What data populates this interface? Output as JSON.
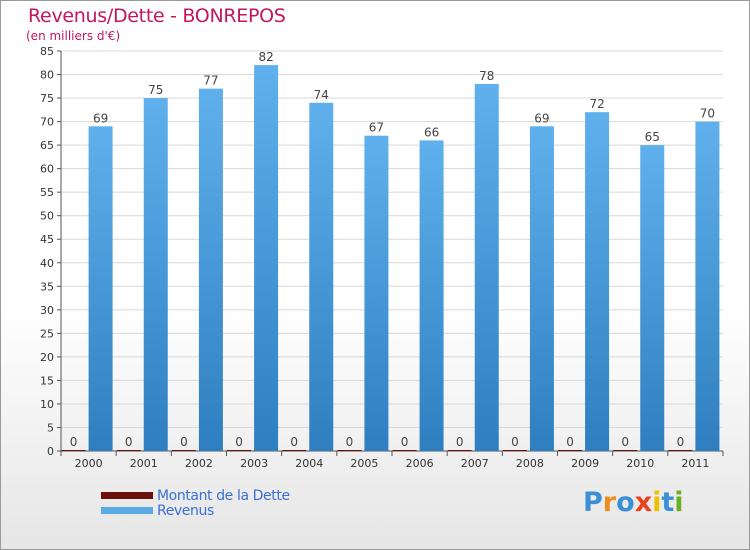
{
  "title": "Revenus/Dette - BONREPOS",
  "subtitle": "(en milliers d'€)",
  "logo": {
    "text": "Proxiti",
    "colors": [
      "#3b8fd6",
      "#f08c1e",
      "#3b8fd6",
      "#e8421e",
      "#f0c000",
      "#3b8fd6",
      "#6ab023"
    ]
  },
  "colors": {
    "revenus": "#5aaae6",
    "dette": "#6b0f0f",
    "title": "#c2185b",
    "legend_text": "#3b6fd6"
  },
  "chart_data": {
    "type": "bar",
    "title": "Revenus/Dette - BONREPOS",
    "ylabel": "(en milliers d'€)",
    "xlabel": "",
    "ylim": [
      0,
      85
    ],
    "yticks": [
      0,
      5,
      10,
      15,
      20,
      25,
      30,
      35,
      40,
      45,
      50,
      55,
      60,
      65,
      70,
      75,
      80,
      85
    ],
    "grid": true,
    "legend_position": "bottom-left",
    "categories": [
      "2000",
      "2001",
      "2002",
      "2003",
      "2004",
      "2005",
      "2006",
      "2007",
      "2008",
      "2009",
      "2010",
      "2011"
    ],
    "series": [
      {
        "name": "Montant de la Dette",
        "color": "#6b0f0f",
        "values": [
          0,
          0,
          0,
          0,
          0,
          0,
          0,
          0,
          0,
          0,
          0,
          0
        ]
      },
      {
        "name": "Revenus",
        "color": "#5aaae6",
        "values": [
          69,
          75,
          77,
          82,
          74,
          67,
          66,
          78,
          69,
          72,
          65,
          70
        ]
      }
    ]
  }
}
